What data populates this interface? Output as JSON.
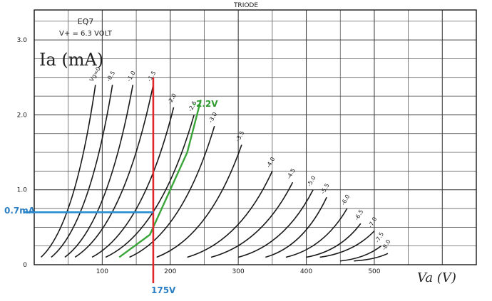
{
  "header": {
    "title": "TRIODE",
    "tube": "EQ7",
    "heater": "V+ = 6.3 VOLT"
  },
  "chart_data": {
    "type": "line",
    "title": "TRIODE",
    "subtitle": "EQ7  V+ = 6.3 VOLT",
    "xlabel": "Va (V)",
    "ylabel": "Ia (mA)",
    "xlim": [
      0,
      650
    ],
    "ylim": [
      0,
      3.4
    ],
    "x_ticks": [
      "100",
      "200",
      "300",
      "400",
      "500"
    ],
    "y_ticks": [
      "0",
      "1.0",
      "2.0",
      "3.0"
    ],
    "grid": true,
    "series": [
      {
        "name": "Vg=0",
        "x": [
          10,
          90
        ],
        "y": [
          0.1,
          2.4
        ]
      },
      {
        "name": "-0.5",
        "x": [
          25,
          115
        ],
        "y": [
          0.1,
          2.4
        ]
      },
      {
        "name": "-1.0",
        "x": [
          45,
          145
        ],
        "y": [
          0.1,
          2.4
        ]
      },
      {
        "name": "-1.5",
        "x": [
          60,
          175
        ],
        "y": [
          0.1,
          2.4
        ]
      },
      {
        "name": "-2.0",
        "x": [
          85,
          205
        ],
        "y": [
          0.1,
          2.1
        ]
      },
      {
        "name": "-2.5",
        "x": [
          105,
          235
        ],
        "y": [
          0.1,
          2.0
        ]
      },
      {
        "name": "-3.0",
        "x": [
          140,
          265
        ],
        "y": [
          0.1,
          1.85
        ]
      },
      {
        "name": "-3.5",
        "x": [
          180,
          305
        ],
        "y": [
          0.1,
          1.6
        ]
      },
      {
        "name": "-4.0",
        "x": [
          225,
          350
        ],
        "y": [
          0.1,
          1.25
        ]
      },
      {
        "name": "-4.5",
        "x": [
          260,
          380
        ],
        "y": [
          0.1,
          1.1
        ]
      },
      {
        "name": "-5.0",
        "x": [
          300,
          410
        ],
        "y": [
          0.1,
          1.0
        ]
      },
      {
        "name": "-5.5",
        "x": [
          340,
          430
        ],
        "y": [
          0.1,
          0.9
        ]
      },
      {
        "name": "-6.0",
        "x": [
          370,
          460
        ],
        "y": [
          0.1,
          0.75
        ]
      },
      {
        "name": "-6.5",
        "x": [
          400,
          480
        ],
        "y": [
          0.1,
          0.55
        ]
      },
      {
        "name": "-7.0",
        "x": [
          420,
          500
        ],
        "y": [
          0.1,
          0.45
        ]
      },
      {
        "name": "-7.5",
        "x": [
          450,
          510
        ],
        "y": [
          0.05,
          0.25
        ]
      },
      {
        "name": "-8.0",
        "x": [
          470,
          520
        ],
        "y": [
          0.05,
          0.15
        ]
      }
    ],
    "annotations": {
      "green_curve_label": "-2.2V",
      "green_curve": {
        "x": [
          125,
          170,
          185,
          225,
          245
        ],
        "y": [
          0.1,
          0.4,
          0.7,
          1.5,
          2.2
        ]
      },
      "vertical_line": {
        "label": "175V",
        "x": 175
      },
      "horizontal_line": {
        "label": "0.7mA",
        "y": 0.7
      }
    },
    "colors": {
      "ink": "#1a1a1a",
      "grid": "#444444",
      "red": "#e0282c",
      "green": "#3aa63a",
      "blue": "#2a8fd0",
      "label_green": "#2f9a2f",
      "label_blue": "#2a7fc4"
    }
  }
}
